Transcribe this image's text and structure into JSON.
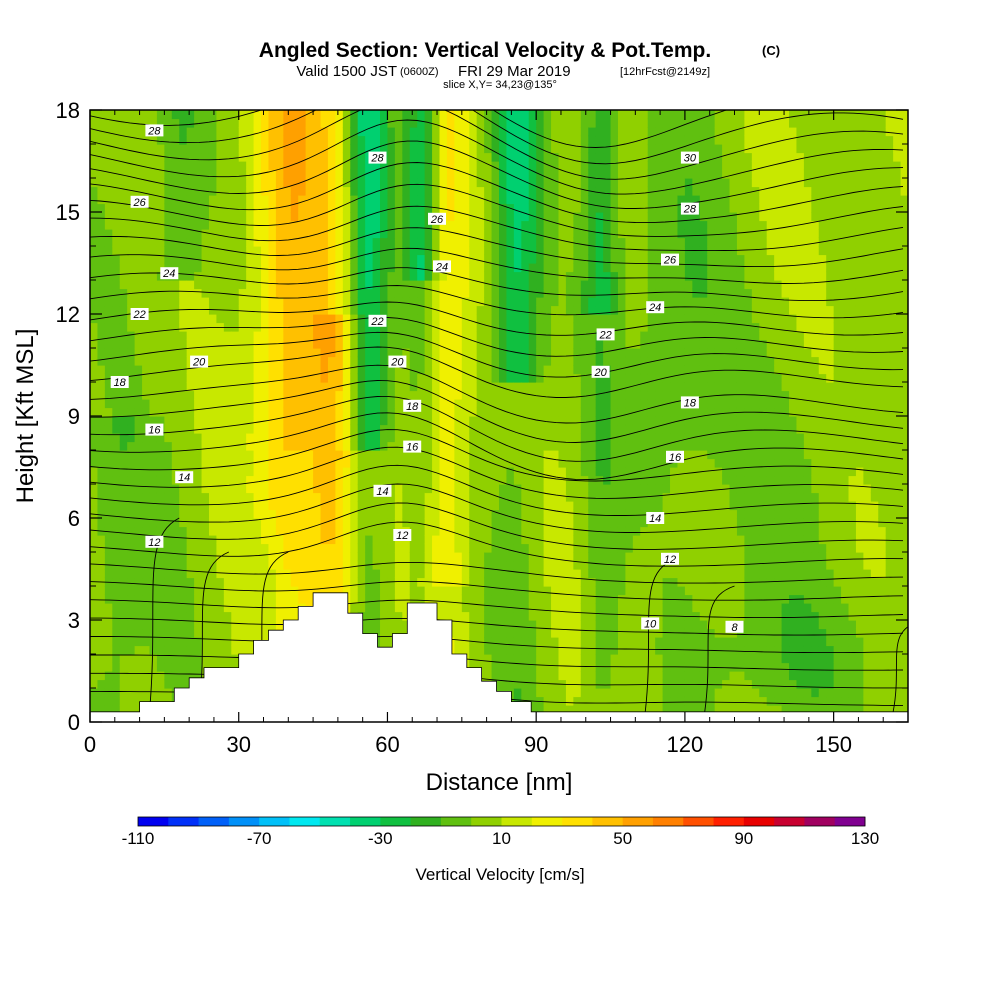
{
  "header": {
    "title": "Angled Section: Vertical Velocity & Pot.Temp.",
    "title_units": "(C)",
    "valid_line_a": "Valid 1500 JST",
    "valid_line_b": "(0600Z)",
    "valid_line_c": "FRI 29 Mar 2019",
    "valid_line_d": "[12hrFcst@2149z]",
    "slice": "slice X,Y= 34,23@135°"
  },
  "chart_data": {
    "type": "heatmap",
    "xlabel": "Distance [nm]",
    "ylabel": "Height [Kft MSL]",
    "xlim": [
      0,
      165
    ],
    "ylim": [
      0,
      18
    ],
    "xticks": [
      0,
      30,
      60,
      90,
      120,
      150
    ],
    "yticks": [
      0,
      3,
      6,
      9,
      12,
      15,
      18
    ],
    "xtick_labels": [
      "0",
      "30",
      "60",
      "90",
      "120",
      "150"
    ],
    "ytick_labels": [
      "0",
      "3",
      "6",
      "9",
      "12",
      "15",
      "18"
    ],
    "colorbar": {
      "label": "Vertical Velocity [cm/s]",
      "min": -110,
      "max": 130,
      "step": 10,
      "tick_values": [
        -110,
        -70,
        -30,
        10,
        50,
        90,
        130
      ],
      "tick_labels": [
        "-110",
        "-70",
        "-30",
        "10",
        "50",
        "90",
        "130"
      ],
      "colors": [
        "#0000f0",
        "#0030f8",
        "#0060f8",
        "#0090f8",
        "#00c0f8",
        "#00e8f0",
        "#00e0b0",
        "#00d070",
        "#10c040",
        "#30b020",
        "#60c010",
        "#90d000",
        "#c8e800",
        "#f0f000",
        "#ffe000",
        "#ffc000",
        "#ffa000",
        "#ff8000",
        "#ff5000",
        "#ff2000",
        "#e80000",
        "#c80030",
        "#a00060",
        "#800090"
      ]
    },
    "terrain": [
      [
        0,
        0.3
      ],
      [
        10,
        0.3
      ],
      [
        10,
        0.6
      ],
      [
        17,
        0.6
      ],
      [
        17,
        1.0
      ],
      [
        20,
        1.0
      ],
      [
        20,
        1.3
      ],
      [
        23,
        1.3
      ],
      [
        23,
        1.6
      ],
      [
        30,
        1.6
      ],
      [
        30,
        2.0
      ],
      [
        33,
        2.0
      ],
      [
        33,
        2.4
      ],
      [
        36,
        2.4
      ],
      [
        36,
        2.7
      ],
      [
        39,
        2.7
      ],
      [
        39,
        3.0
      ],
      [
        42,
        3.0
      ],
      [
        42,
        3.4
      ],
      [
        45,
        3.4
      ],
      [
        45,
        3.8
      ],
      [
        52,
        3.8
      ],
      [
        52,
        3.2
      ],
      [
        55,
        3.2
      ],
      [
        55,
        2.6
      ],
      [
        58,
        2.6
      ],
      [
        58,
        2.2
      ],
      [
        61,
        2.2
      ],
      [
        61,
        2.6
      ],
      [
        64,
        2.6
      ],
      [
        64,
        3.5
      ],
      [
        70,
        3.5
      ],
      [
        70,
        3.0
      ],
      [
        73,
        3.0
      ],
      [
        73,
        2.0
      ],
      [
        76,
        2.0
      ],
      [
        76,
        1.6
      ],
      [
        79,
        1.6
      ],
      [
        79,
        1.2
      ],
      [
        82,
        1.2
      ],
      [
        82,
        0.9
      ],
      [
        85,
        0.9
      ],
      [
        85,
        0.6
      ],
      [
        89,
        0.6
      ],
      [
        89,
        0.3
      ],
      [
        165,
        0.3
      ]
    ],
    "theta_labels": [
      {
        "value": "28",
        "x": 13,
        "y": 17.4
      },
      {
        "value": "28",
        "x": 58,
        "y": 16.6
      },
      {
        "value": "30",
        "x": 121,
        "y": 16.6
      },
      {
        "value": "26",
        "x": 10,
        "y": 15.3
      },
      {
        "value": "26",
        "x": 70,
        "y": 14.8
      },
      {
        "value": "28",
        "x": 121,
        "y": 15.1
      },
      {
        "value": "24",
        "x": 16,
        "y": 13.2
      },
      {
        "value": "24",
        "x": 71,
        "y": 13.4
      },
      {
        "value": "26",
        "x": 117,
        "y": 13.6
      },
      {
        "value": "22",
        "x": 10,
        "y": 12.0
      },
      {
        "value": "22",
        "x": 58,
        "y": 11.8
      },
      {
        "value": "24",
        "x": 114,
        "y": 12.2
      },
      {
        "value": "22",
        "x": 104,
        "y": 11.4
      },
      {
        "value": "20",
        "x": 22,
        "y": 10.6
      },
      {
        "value": "20",
        "x": 62,
        "y": 10.6
      },
      {
        "value": "20",
        "x": 103,
        "y": 10.3
      },
      {
        "value": "18",
        "x": 6,
        "y": 10.0
      },
      {
        "value": "18",
        "x": 65,
        "y": 9.3
      },
      {
        "value": "18",
        "x": 121,
        "y": 9.4
      },
      {
        "value": "16",
        "x": 13,
        "y": 8.6
      },
      {
        "value": "16",
        "x": 65,
        "y": 8.1
      },
      {
        "value": "16",
        "x": 118,
        "y": 7.8
      },
      {
        "value": "14",
        "x": 19,
        "y": 7.2
      },
      {
        "value": "14",
        "x": 59,
        "y": 6.8
      },
      {
        "value": "14",
        "x": 114,
        "y": 6.0
      },
      {
        "value": "12",
        "x": 13,
        "y": 5.3
      },
      {
        "value": "12",
        "x": 63,
        "y": 5.5
      },
      {
        "value": "12",
        "x": 117,
        "y": 4.8
      },
      {
        "value": "10",
        "x": 113,
        "y": 2.9
      },
      {
        "value": "8",
        "x": 130,
        "y": 2.8
      }
    ]
  }
}
